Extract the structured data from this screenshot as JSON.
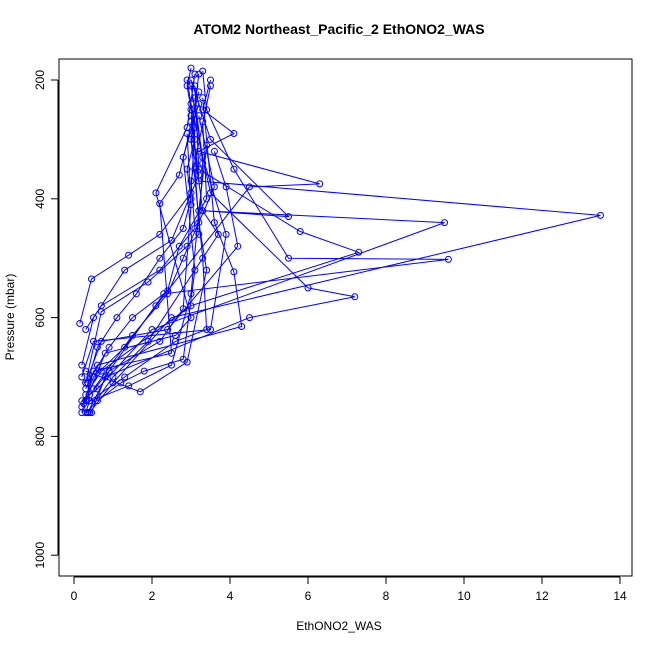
{
  "chart_data": {
    "type": "scatter",
    "title": "ATOM2 Northeast_Pacific_2 EthONO2_WAS",
    "xlabel": "EthONO2_WAS",
    "ylabel": "Pressure (mbar)",
    "xlim": [
      0,
      14
    ],
    "ylim": [
      1030,
      175
    ],
    "y_reversed": true,
    "x_ticks": [
      0,
      2,
      4,
      6,
      8,
      10,
      12,
      14
    ],
    "y_ticks": [
      200,
      400,
      600,
      800,
      1000
    ],
    "grid": false,
    "color": "#0000ff",
    "marker": "open-circle",
    "series": [
      {
        "x": [
          0.3,
          0.4,
          0.35,
          0.6,
          1.1,
          1.6,
          2.2,
          2.8,
          3.0,
          2.9,
          3.1,
          3.0,
          2.9,
          3.0
        ],
        "y": [
          760,
          740,
          710,
          650,
          600,
          560,
          500,
          450,
          400,
          350,
          300,
          250,
          210,
          180
        ]
      },
      {
        "x": [
          0.2,
          0.5,
          1.3,
          2.1,
          4.5,
          6.3,
          3.2,
          4.1,
          3.3,
          3.5
        ],
        "y": [
          750,
          700,
          650,
          580,
          380,
          375,
          320,
          290,
          250,
          200
        ]
      },
      {
        "x": [
          0.4,
          1.0,
          2.5,
          13.5,
          3.2,
          3.0,
          3.2
        ],
        "y": [
          760,
          710,
          600,
          428,
          370,
          300,
          190
        ]
      },
      {
        "x": [
          0.2,
          0.6,
          2.0,
          9.5,
          3.3,
          5.5,
          3.5,
          3.0
        ],
        "y": [
          740,
          720,
          620,
          440,
          420,
          430,
          300,
          200
        ]
      },
      {
        "x": [
          0.35,
          0.9,
          2.3,
          9.6,
          5.5,
          4.1,
          3.4,
          3.3
        ],
        "y": [
          760,
          690,
          560,
          502,
          500,
          350,
          250,
          185
        ]
      },
      {
        "x": [
          0.3,
          0.7,
          3.0,
          7.3,
          5.8,
          3.2,
          3.1
        ],
        "y": [
          730,
          690,
          580,
          490,
          455,
          350,
          210
        ]
      },
      {
        "x": [
          0.45,
          0.8,
          4.5,
          7.2,
          6.0,
          3.5,
          3.0
        ],
        "y": [
          760,
          700,
          600,
          565,
          550,
          390,
          240
        ]
      },
      {
        "x": [
          0.3,
          0.6,
          4.3,
          4.1,
          3.6,
          3.3
        ],
        "y": [
          720,
          680,
          615,
          523,
          440,
          230
        ]
      },
      {
        "x": [
          0.2,
          0.5,
          3.5,
          3.9,
          3.3,
          3.0
        ],
        "y": [
          700,
          640,
          620,
          460,
          330,
          210
        ]
      },
      {
        "x": [
          0.15,
          0.45,
          1.4,
          2.2,
          3.0,
          3.1,
          2.9
        ],
        "y": [
          610,
          535,
          495,
          460,
          390,
          280,
          200
        ]
      },
      {
        "x": [
          0.2,
          0.5,
          1.3,
          2.5,
          3.2,
          3.0
        ],
        "y": [
          680,
          600,
          520,
          470,
          360,
          260
        ]
      },
      {
        "x": [
          0.6,
          1.2,
          1.8,
          2.8,
          3.1,
          2.8,
          3.2
        ],
        "y": [
          740,
          710,
          690,
          670,
          520,
          330,
          240
        ]
      },
      {
        "x": [
          0.35,
          0.9,
          1.5,
          2.4,
          2.7,
          3.4,
          3.3
        ],
        "y": [
          710,
          650,
          600,
          555,
          480,
          400,
          270
        ]
      },
      {
        "x": [
          0.4,
          1.3,
          2.6,
          3.4,
          3.3,
          3.0
        ],
        "y": [
          740,
          700,
          640,
          620,
          500,
          300
        ]
      },
      {
        "x": [
          0.25,
          1.4,
          2.5,
          3.0,
          3.2,
          3.4
        ],
        "y": [
          745,
          715,
          680,
          560,
          420,
          310
        ]
      },
      {
        "x": [
          0.3,
          1.7,
          2.9,
          3.4,
          3.2,
          3.1
        ],
        "y": [
          690,
          725,
          675,
          520,
          440,
          350
        ]
      },
      {
        "x": [
          0.3,
          0.7,
          2.2,
          3.1,
          3.0,
          3.5
        ],
        "y": [
          620,
          580,
          520,
          450,
          370,
          210
        ]
      },
      {
        "x": [
          0.5,
          1.5,
          2.4,
          2.8,
          3.6,
          3.2
        ],
        "y": [
          720,
          630,
          560,
          500,
          380,
          260
        ]
      },
      {
        "x": [
          0.3,
          0.7,
          1.9,
          2.9,
          3.2,
          3.3,
          3.1
        ],
        "y": [
          710,
          590,
          540,
          480,
          460,
          340,
          230
        ]
      },
      {
        "x": [
          0.2,
          0.5,
          2.5,
          2.2,
          2.7,
          3.2
        ],
        "y": [
          760,
          690,
          660,
          408,
          360,
          220
        ]
      },
      {
        "x": [
          0.3,
          0.8,
          2.6,
          3.0,
          2.1,
          2.9,
          3.1
        ],
        "y": [
          740,
          660,
          630,
          600,
          390,
          280,
          190
        ]
      },
      {
        "x": [
          0.4,
          0.9,
          2.2,
          2.8,
          3.0,
          2.9
        ],
        "y": [
          730,
          690,
          640,
          585,
          410,
          290
        ]
      },
      {
        "x": [
          0.35,
          1.0,
          1.9,
          3.7,
          3.3,
          3.0
        ],
        "y": [
          760,
          700,
          640,
          460,
          420,
          270
        ]
      },
      {
        "x": [
          0.3,
          0.7,
          2.4,
          4.2,
          3.9,
          3.6
        ],
        "y": [
          710,
          640,
          620,
          480,
          380,
          320
        ]
      }
    ]
  }
}
